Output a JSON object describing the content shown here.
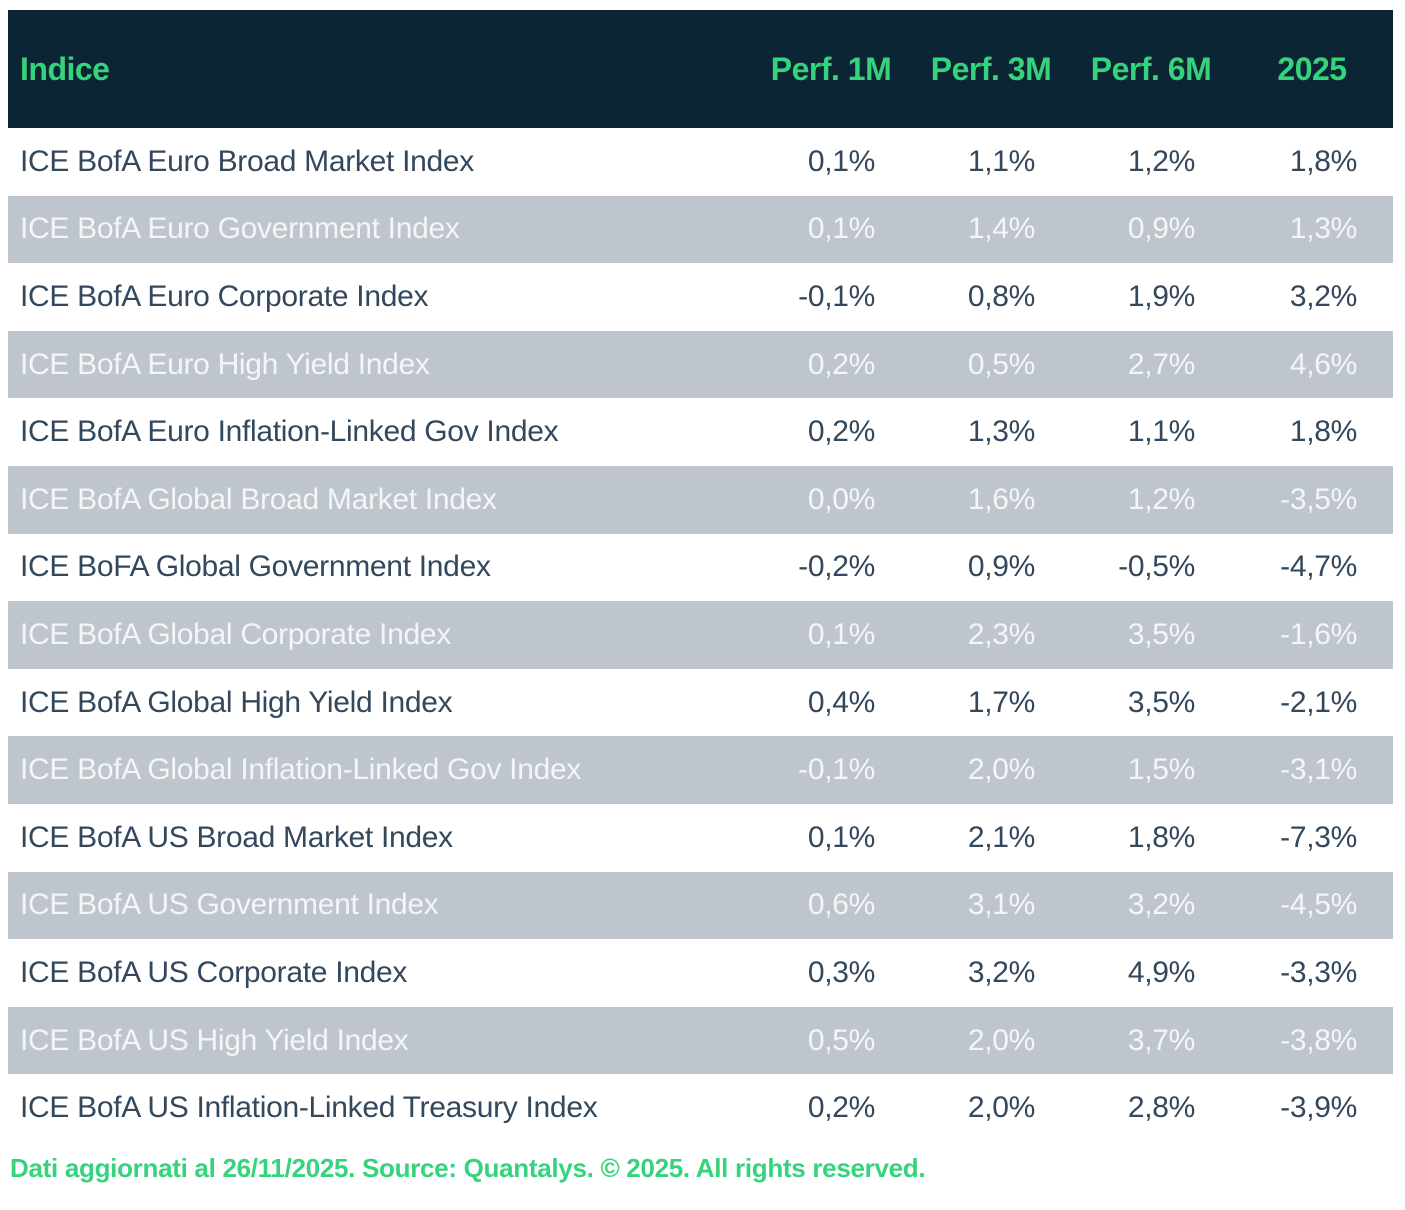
{
  "chart_data": {
    "type": "table",
    "columns": [
      "Indice",
      "Perf. 1M",
      "Perf. 3M",
      "Perf. 6M",
      "2025"
    ],
    "rows": [
      {
        "label": "ICE BofA Euro Broad Market Index",
        "m1": "0,1%",
        "m3": "1,1%",
        "m6": "1,2%",
        "y2025": "1,8%"
      },
      {
        "label": "ICE BofA Euro Government Index",
        "m1": "0,1%",
        "m3": "1,4%",
        "m6": "0,9%",
        "y2025": "1,3%"
      },
      {
        "label": "ICE BofA Euro Corporate Index",
        "m1": "-0,1%",
        "m3": "0,8%",
        "m6": "1,9%",
        "y2025": "3,2%"
      },
      {
        "label": "ICE BofA Euro High Yield Index",
        "m1": "0,2%",
        "m3": "0,5%",
        "m6": "2,7%",
        "y2025": "4,6%"
      },
      {
        "label": "ICE BofA Euro Inflation-Linked Gov Index",
        "m1": "0,2%",
        "m3": "1,3%",
        "m6": "1,1%",
        "y2025": "1,8%"
      },
      {
        "label": "ICE BofA Global Broad Market Index",
        "m1": "0,0%",
        "m3": "1,6%",
        "m6": "1,2%",
        "y2025": "-3,5%"
      },
      {
        "label": "ICE BoFA Global Government Index",
        "m1": "-0,2%",
        "m3": "0,9%",
        "m6": "-0,5%",
        "y2025": "-4,7%"
      },
      {
        "label": "ICE BofA Global Corporate Index",
        "m1": "0,1%",
        "m3": "2,3%",
        "m6": "3,5%",
        "y2025": "-1,6%"
      },
      {
        "label": "ICE BofA Global High Yield Index",
        "m1": "0,4%",
        "m3": "1,7%",
        "m6": "3,5%",
        "y2025": "-2,1%"
      },
      {
        "label": "ICE BofA Global Inflation-Linked Gov Index",
        "m1": "-0,1%",
        "m3": "2,0%",
        "m6": "1,5%",
        "y2025": "-3,1%"
      },
      {
        "label": "ICE BofA US Broad Market Index",
        "m1": "0,1%",
        "m3": "2,1%",
        "m6": "1,8%",
        "y2025": "-7,3%"
      },
      {
        "label": "ICE BofA US Government Index",
        "m1": "0,6%",
        "m3": "3,1%",
        "m6": "3,2%",
        "y2025": "-4,5%"
      },
      {
        "label": "ICE BofA US Corporate Index",
        "m1": "0,3%",
        "m3": "3,2%",
        "m6": "4,9%",
        "y2025": "-3,3%"
      },
      {
        "label": "ICE BofA US High Yield Index",
        "m1": "0,5%",
        "m3": "2,0%",
        "m6": "3,7%",
        "y2025": "-3,8%"
      },
      {
        "label": "ICE BofA US Inflation-Linked Treasury Index",
        "m1": "0,2%",
        "m3": "2,0%",
        "m6": "2,8%",
        "y2025": "-3,9%"
      }
    ]
  },
  "footer": {
    "text": "Dati aggiornati al 26/11/2025. Source: Quantalys. © 2025. All rights reserved."
  },
  "colors": {
    "header_bg": "#0C2534",
    "accent_green": "#35D47C",
    "alt_row_bg": "#BFC5CC",
    "row_text": "#33485C",
    "alt_row_text": "#F3F5F7"
  }
}
